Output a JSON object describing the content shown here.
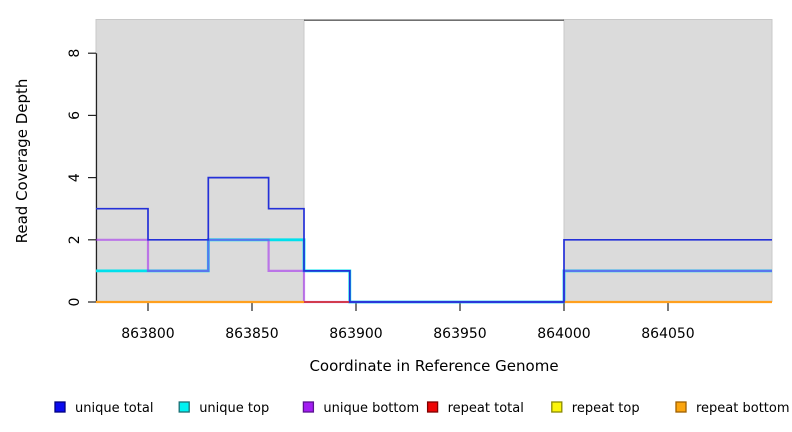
{
  "chart_data": {
    "type": "line",
    "subtype": "step-coverage-plot",
    "title": "",
    "xlabel": "Coordinate in Reference Genome",
    "ylabel": "Read Coverage Depth",
    "xlim": [
      863775,
      864100
    ],
    "ylim": [
      0,
      9.1
    ],
    "xticks": [
      863800,
      863850,
      863900,
      863950,
      864000,
      864050
    ],
    "yticks": [
      0,
      2,
      4,
      6,
      8
    ],
    "grid": false,
    "background": "#FFFFFF",
    "shaded_region_color": "#DBDBDB",
    "shaded_region_border": "#C8C8C8",
    "shaded_regions": [
      {
        "x0": 863775,
        "x1": 863875
      },
      {
        "x0": 864000,
        "x1": 864100
      }
    ],
    "gap_line": {
      "x0": 863875,
      "x1": 864000,
      "y": 9.05,
      "color": "#707070"
    },
    "legend_position": "bottom",
    "series": [
      {
        "name": "unique total",
        "line_color": "#2430D8",
        "legend_fill": "#0B0BEF",
        "legend_border": "#000080",
        "width": 1.7,
        "opacity": 1,
        "z": 6,
        "runs": [
          {
            "steps": [
              [
                863775,
                3
              ],
              [
                863800,
                2
              ],
              [
                863829,
                4
              ],
              [
                863858,
                3
              ],
              [
                863875,
                1
              ],
              [
                863897,
                0
              ],
              [
                864000,
                2
              ]
            ],
            "xend": 864100
          }
        ]
      },
      {
        "name": "unique top",
        "line_color": "#00E0EC",
        "legend_fill": "#00F2F2",
        "legend_border": "#1C6E74",
        "width": 2.8,
        "opacity": 1,
        "z": 2,
        "runs": [
          {
            "steps": [
              [
                863775,
                1
              ],
              [
                863829,
                2
              ],
              [
                863875,
                1
              ],
              [
                863897,
                0
              ],
              [
                864000,
                1
              ]
            ],
            "xend": 864100
          }
        ]
      },
      {
        "name": "unique bottom",
        "line_color": "#A020F0",
        "legend_fill": "#A31DF2",
        "legend_border": "#5B1191",
        "width": 2.2,
        "opacity": 0.55,
        "z": 3,
        "runs": [
          {
            "steps": [
              [
                863775,
                2
              ],
              [
                863800,
                1
              ],
              [
                863829,
                2
              ],
              [
                863858,
                1
              ],
              [
                863875,
                0
              ],
              [
                864000,
                1
              ]
            ],
            "xend": 864100
          }
        ]
      },
      {
        "name": "repeat total",
        "line_color": "#D23B4E",
        "legend_fill": "#EE0505",
        "legend_border": "#7E0000",
        "width": 2,
        "opacity": 1,
        "z": 4,
        "runs": [
          {
            "steps": [
              [
                863775,
                0
              ]
            ],
            "xend": 863897
          },
          {
            "steps": [
              [
                864000,
                0
              ]
            ],
            "xend": 864100
          }
        ]
      },
      {
        "name": "repeat top",
        "line_color": "#FFFF00",
        "legend_fill": "#FBF50C",
        "legend_border": "#8A8A00",
        "width": 2,
        "opacity": 1,
        "z": 1,
        "runs": [
          {
            "steps": [
              [
                863775,
                0
              ]
            ],
            "xend": 863875
          },
          {
            "steps": [
              [
                864000,
                0
              ]
            ],
            "xend": 864100
          }
        ]
      },
      {
        "name": "repeat bottom",
        "line_color": "#FFA01E",
        "legend_fill": "#FBA50F",
        "legend_border": "#9E5F00",
        "width": 2.2,
        "opacity": 1,
        "z": 5,
        "runs": [
          {
            "steps": [
              [
                863775,
                0
              ]
            ],
            "xend": 863875
          },
          {
            "steps": [
              [
                864000,
                0
              ]
            ],
            "xend": 864100
          }
        ]
      }
    ]
  }
}
